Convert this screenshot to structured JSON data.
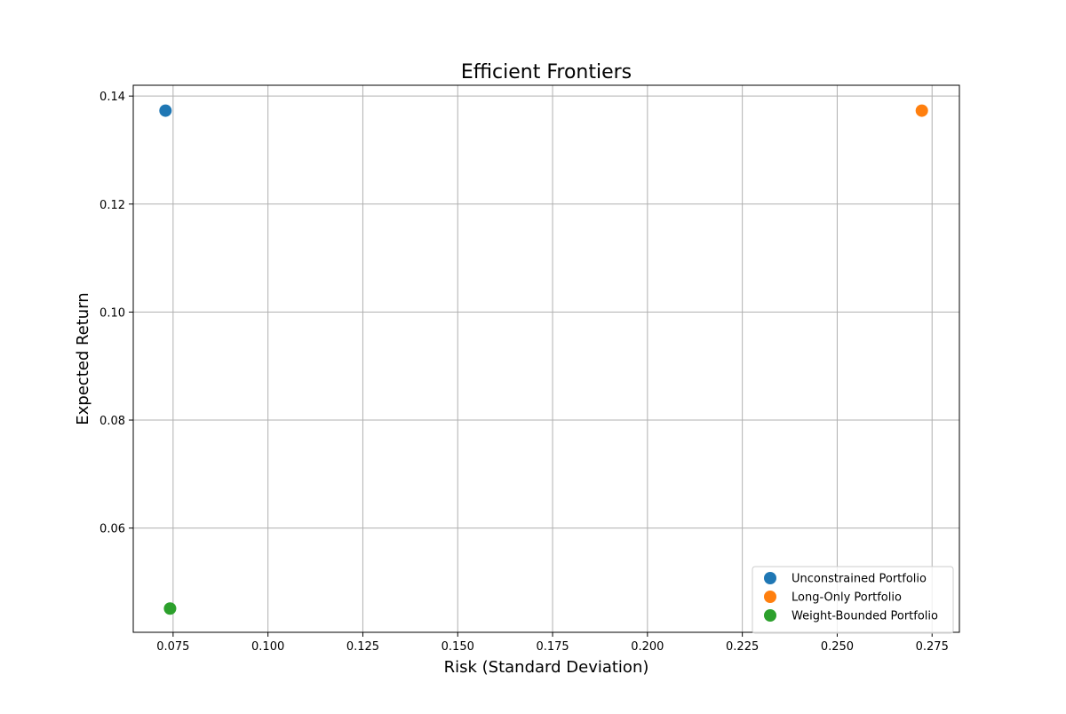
{
  "chart_data": {
    "type": "scatter",
    "title": "Efficient Frontiers",
    "xlabel": "Risk (Standard Deviation)",
    "ylabel": "Expected Return",
    "xlim": [
      0.0645,
      0.2822
    ],
    "ylim": [
      0.0407,
      0.142
    ],
    "xticks": [
      0.075,
      0.1,
      0.125,
      0.15,
      0.175,
      0.2,
      0.225,
      0.25,
      0.275
    ],
    "xtick_labels": [
      "0.075",
      "0.100",
      "0.125",
      "0.150",
      "0.175",
      "0.200",
      "0.225",
      "0.250",
      "0.275"
    ],
    "yticks": [
      0.06,
      0.08,
      0.1,
      0.12,
      0.14
    ],
    "ytick_labels": [
      "0.06",
      "0.08",
      "0.10",
      "0.12",
      "0.14"
    ],
    "grid": true,
    "legend_position": "lower-right",
    "series": [
      {
        "name": "Unconstrained Portfolio",
        "color": "#1f77b4",
        "points": [
          {
            "x": 0.073,
            "y": 0.1373
          }
        ]
      },
      {
        "name": "Long-Only Portfolio",
        "color": "#ff7f0e",
        "points": [
          {
            "x": 0.2723,
            "y": 0.1373
          }
        ]
      },
      {
        "name": "Weight-Bounded Portfolio",
        "color": "#2ca02c",
        "points": [
          {
            "x": 0.0742,
            "y": 0.0451
          }
        ]
      }
    ]
  }
}
